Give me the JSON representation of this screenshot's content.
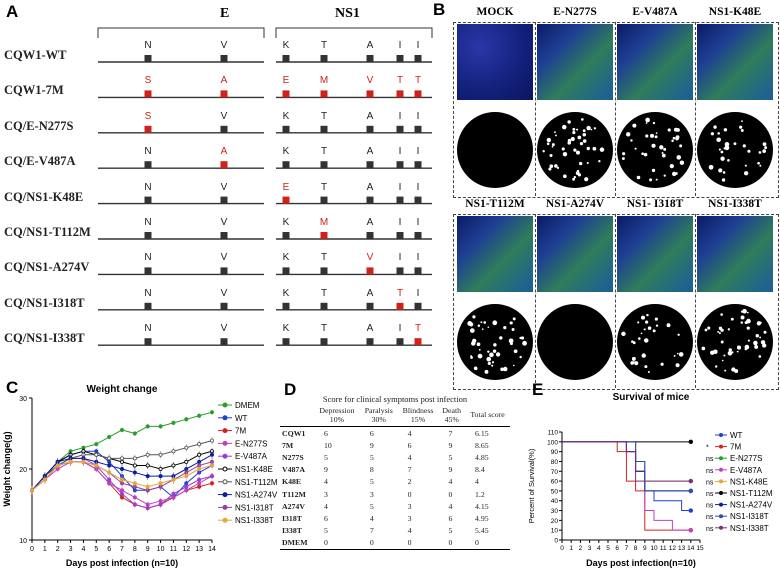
{
  "panelA": {
    "letter": "A",
    "gene_E": "E",
    "gene_NS1": "NS1",
    "rows": [
      {
        "label": "CQW1-WT",
        "E": [
          {
            "aa": "N",
            "red": false
          },
          {
            "aa": "V",
            "red": false
          }
        ],
        "NS1": [
          {
            "aa": "K",
            "red": false
          },
          {
            "aa": "T",
            "red": false
          },
          {
            "aa": "A",
            "red": false
          },
          {
            "aa": "I",
            "red": false
          },
          {
            "aa": "I",
            "red": false
          }
        ]
      },
      {
        "label": "CQW1-7M",
        "E": [
          {
            "aa": "S",
            "red": true
          },
          {
            "aa": "A",
            "red": true
          }
        ],
        "NS1": [
          {
            "aa": "E",
            "red": true
          },
          {
            "aa": "M",
            "red": true
          },
          {
            "aa": "V",
            "red": true
          },
          {
            "aa": "T",
            "red": true
          },
          {
            "aa": "T",
            "red": true
          }
        ]
      },
      {
        "label": "CQ/E-N277S",
        "E": [
          {
            "aa": "S",
            "red": true
          },
          {
            "aa": "V",
            "red": false
          }
        ],
        "NS1": [
          {
            "aa": "K",
            "red": false
          },
          {
            "aa": "T",
            "red": false
          },
          {
            "aa": "A",
            "red": false
          },
          {
            "aa": "I",
            "red": false
          },
          {
            "aa": "I",
            "red": false
          }
        ]
      },
      {
        "label": "CQ/E-V487A",
        "E": [
          {
            "aa": "N",
            "red": false
          },
          {
            "aa": "A",
            "red": true
          }
        ],
        "NS1": [
          {
            "aa": "K",
            "red": false
          },
          {
            "aa": "T",
            "red": false
          },
          {
            "aa": "A",
            "red": false
          },
          {
            "aa": "I",
            "red": false
          },
          {
            "aa": "I",
            "red": false
          }
        ]
      },
      {
        "label": "CQ/NS1-K48E",
        "E": [
          {
            "aa": "N",
            "red": false
          },
          {
            "aa": "V",
            "red": false
          }
        ],
        "NS1": [
          {
            "aa": "E",
            "red": true
          },
          {
            "aa": "T",
            "red": false
          },
          {
            "aa": "A",
            "red": false
          },
          {
            "aa": "I",
            "red": false
          },
          {
            "aa": "I",
            "red": false
          }
        ]
      },
      {
        "label": "CQ/NS1-T112M",
        "E": [
          {
            "aa": "N",
            "red": false
          },
          {
            "aa": "V",
            "red": false
          }
        ],
        "NS1": [
          {
            "aa": "K",
            "red": false
          },
          {
            "aa": "M",
            "red": true
          },
          {
            "aa": "A",
            "red": false
          },
          {
            "aa": "I",
            "red": false
          },
          {
            "aa": "I",
            "red": false
          }
        ]
      },
      {
        "label": "CQ/NS1-A274V",
        "E": [
          {
            "aa": "N",
            "red": false
          },
          {
            "aa": "V",
            "red": false
          }
        ],
        "NS1": [
          {
            "aa": "K",
            "red": false
          },
          {
            "aa": "T",
            "red": false
          },
          {
            "aa": "V",
            "red": true
          },
          {
            "aa": "I",
            "red": false
          },
          {
            "aa": "I",
            "red": false
          }
        ]
      },
      {
        "label": "CQ/NS1-I318T",
        "E": [
          {
            "aa": "N",
            "red": false
          },
          {
            "aa": "V",
            "red": false
          }
        ],
        "NS1": [
          {
            "aa": "K",
            "red": false
          },
          {
            "aa": "T",
            "red": false
          },
          {
            "aa": "A",
            "red": false
          },
          {
            "aa": "T",
            "red": true
          },
          {
            "aa": "I",
            "red": false
          }
        ]
      },
      {
        "label": "CQ/NS1-I338T",
        "E": [
          {
            "aa": "N",
            "red": false
          },
          {
            "aa": "V",
            "red": false
          }
        ],
        "NS1": [
          {
            "aa": "K",
            "red": false
          },
          {
            "aa": "T",
            "red": false
          },
          {
            "aa": "A",
            "red": false
          },
          {
            "aa": "I",
            "red": false
          },
          {
            "aa": "T",
            "red": true
          }
        ]
      }
    ]
  },
  "panelB": {
    "letter": "B",
    "top_labels": [
      "MOCK",
      "E-N277S",
      "E-V487A",
      "NS1-K48E"
    ],
    "bottom_labels": [
      "NS1-T112M",
      "NS1-A274V",
      "NS1- I318T",
      "NS1-I338T"
    ]
  },
  "panelC": {
    "letter": "C",
    "title": "Weight change",
    "xlabel": "Days post infection (n=10)",
    "ylabel": "Weight change(g)",
    "x_ticks": [
      "0",
      "1",
      "2",
      "3",
      "4",
      "5",
      "6",
      "7",
      "8",
      "9",
      "10",
      "11",
      "12",
      "13",
      "14"
    ],
    "y_ticks": [
      "10",
      "20",
      "30"
    ],
    "legend": [
      "DMEM",
      "WT",
      "7M",
      "E-N277S",
      "E-V487A",
      "NS1-K48E",
      "NS1-T112M",
      "NS1-A274V",
      "NS1-I318T",
      "NS1-I338T"
    ]
  },
  "panelD": {
    "letter": "D",
    "caption": "Score for clinical symptoms post infection",
    "headers": [
      [
        "Depression",
        "10%"
      ],
      [
        "Paralysis",
        "30%"
      ],
      [
        "Blindness",
        "15%"
      ],
      [
        "Death",
        "45%"
      ],
      [
        "Total score",
        ""
      ]
    ],
    "rows": [
      [
        "CQW1",
        "6",
        "6",
        "4",
        "7",
        "6.15"
      ],
      [
        "7M",
        "10",
        "9",
        "6",
        "9",
        "8.65"
      ],
      [
        "N277S",
        "5",
        "5",
        "4",
        "5",
        "4.85"
      ],
      [
        "V487A",
        "9",
        "8",
        "7",
        "9",
        "8.4"
      ],
      [
        "K48E",
        "4",
        "5",
        "2",
        "4",
        "4"
      ],
      [
        "T112M",
        "3",
        "3",
        "0",
        "0",
        "1.2"
      ],
      [
        "A274V",
        "4",
        "5",
        "3",
        "4",
        "4.15"
      ],
      [
        "I318T",
        "6",
        "4",
        "3",
        "6",
        "4.95"
      ],
      [
        "I338T",
        "5",
        "7",
        "4",
        "5",
        "5.45"
      ],
      [
        "DMEM",
        "0",
        "0",
        "0",
        "0",
        "0"
      ]
    ]
  },
  "panelE": {
    "letter": "E",
    "title": "Survival of mice",
    "xlabel": "Days post infection(n=10)",
    "ylabel": "Percent of Survival(%)",
    "x_ticks": [
      "0",
      "1",
      "2",
      "3",
      "4",
      "5",
      "6",
      "7",
      "8",
      "9",
      "10",
      "11",
      "12",
      "13",
      "14",
      "15"
    ],
    "y_ticks": [
      "0",
      "10",
      "20",
      "30",
      "40",
      "50",
      "60",
      "70",
      "80",
      "90",
      "100",
      "110"
    ],
    "legend": [
      "WT",
      "7M",
      "E-N277S",
      "E-V487A",
      "NS1-K48E",
      "NS1-T112M",
      "NS1-A274V",
      "NS1-I318T",
      "NS1-I338T"
    ],
    "ns_label": "ns",
    "star_label": "*"
  },
  "chart_data": [
    {
      "type": "line",
      "title": "Weight change",
      "xlabel": "Days post infection (n=10)",
      "ylabel": "Weight change(g)",
      "ylim": [
        10,
        30
      ],
      "x": [
        0,
        1,
        2,
        3,
        4,
        5,
        6,
        7,
        8,
        9,
        10,
        11,
        12,
        13,
        14
      ],
      "series": [
        {
          "name": "DMEM",
          "color": "#2a9d2a",
          "values": [
            17,
            19,
            21,
            22.5,
            23,
            23.5,
            24.5,
            25.5,
            25,
            26,
            26,
            26.5,
            27,
            27.5,
            28
          ]
        },
        {
          "name": "WT",
          "color": "#1f3fd6",
          "values": [
            17,
            19,
            21,
            22,
            22.5,
            22.5,
            21,
            19,
            17,
            17,
            17.5,
            16,
            18,
            19.5,
            20.5
          ]
        },
        {
          "name": "7M",
          "color": "#d62020",
          "values": [
            17,
            18.5,
            20.5,
            21,
            21,
            20,
            18,
            16,
            15,
            14.5,
            15,
            16,
            17,
            17.5,
            18
          ]
        },
        {
          "name": "E-N277S",
          "color": "#c040c0",
          "values": [
            17,
            18.5,
            20,
            21,
            21,
            20,
            18,
            17,
            16,
            15,
            15.5,
            16,
            17,
            18,
            19
          ]
        },
        {
          "name": "E-V487A",
          "color": "#9a3fd0",
          "values": [
            17,
            18.5,
            20.5,
            21.5,
            21.5,
            20.5,
            18.5,
            16.5,
            15,
            14.5,
            15,
            16.5,
            17.5,
            18.5,
            19
          ]
        },
        {
          "name": "NS1-K48E",
          "color": "#000000",
          "values": [
            17,
            19,
            21,
            22,
            22.5,
            22,
            21.5,
            21,
            20.5,
            20.5,
            20,
            20.5,
            21,
            22,
            22.5
          ]
        },
        {
          "name": "NS1-T112M",
          "color": "#555555",
          "values": [
            17,
            19,
            20.5,
            21.5,
            22,
            22,
            21.5,
            21.5,
            21.5,
            22,
            22,
            22.5,
            23,
            23.5,
            24
          ]
        },
        {
          "name": "NS1-A274V",
          "color": "#0b1f9e",
          "values": [
            17,
            19,
            21,
            21.5,
            21.5,
            21,
            20.5,
            20,
            19.5,
            19,
            19,
            19,
            20,
            21,
            22
          ]
        },
        {
          "name": "NS1-I318T",
          "color": "#9a3f9a",
          "values": [
            17,
            18.5,
            20.5,
            21,
            21,
            20.5,
            19.5,
            18,
            17.5,
            17,
            17.5,
            18.5,
            19.5,
            20.5,
            21
          ]
        },
        {
          "name": "NS1-I338T",
          "color": "#e7a53b",
          "values": [
            17,
            18.5,
            20.5,
            21,
            21,
            20.5,
            19.5,
            18.5,
            18,
            17.5,
            18,
            18.5,
            19,
            20,
            20.5
          ]
        }
      ]
    },
    {
      "type": "line",
      "title": "Survival of mice",
      "xlabel": "Days post infection(n=10)",
      "ylabel": "Percent of Survival(%)",
      "ylim": [
        0,
        110
      ],
      "series": [
        {
          "name": "WT",
          "color": "#1f3fd6",
          "points": [
            [
              0,
              100
            ],
            [
              7,
              100
            ],
            [
              7,
              90
            ],
            [
              8,
              90
            ],
            [
              8,
              80
            ],
            [
              9,
              80
            ],
            [
              9,
              50
            ],
            [
              10,
              50
            ],
            [
              10,
              40
            ],
            [
              13,
              40
            ],
            [
              13,
              30
            ],
            [
              14,
              30
            ]
          ]
        },
        {
          "name": "7M",
          "color": "#d62020",
          "points": [
            [
              0,
              100
            ],
            [
              6,
              100
            ],
            [
              6,
              90
            ],
            [
              7,
              90
            ],
            [
              7,
              60
            ],
            [
              8,
              60
            ],
            [
              8,
              50
            ],
            [
              9,
              50
            ],
            [
              9,
              10
            ],
            [
              14,
              10
            ]
          ]
        },
        {
          "name": "E-N277S",
          "color": "#2a9d2a",
          "points": [
            [
              0,
              100
            ],
            [
              8,
              100
            ],
            [
              8,
              70
            ],
            [
              9,
              70
            ],
            [
              9,
              50
            ],
            [
              14,
              50
            ]
          ]
        },
        {
          "name": "E-V487A",
          "color": "#c040c0",
          "points": [
            [
              0,
              100
            ],
            [
              8,
              100
            ],
            [
              8,
              70
            ],
            [
              9,
              70
            ],
            [
              9,
              30
            ],
            [
              10,
              30
            ],
            [
              10,
              20
            ],
            [
              12,
              20
            ],
            [
              12,
              10
            ],
            [
              14,
              10
            ]
          ]
        },
        {
          "name": "NS1-K48E",
          "color": "#e7a53b",
          "points": [
            [
              0,
              100
            ],
            [
              8,
              100
            ],
            [
              8,
              80
            ],
            [
              9,
              80
            ],
            [
              9,
              60
            ],
            [
              14,
              60
            ]
          ]
        },
        {
          "name": "NS1-T112M",
          "color": "#000000",
          "points": [
            [
              0,
              100
            ],
            [
              14,
              100
            ]
          ]
        },
        {
          "name": "NS1-A274V",
          "color": "#0b1f9e",
          "points": [
            [
              0,
              100
            ],
            [
              7,
              100
            ],
            [
              7,
              90
            ],
            [
              8,
              90
            ],
            [
              8,
              70
            ],
            [
              9,
              70
            ],
            [
              9,
              50
            ],
            [
              14,
              50
            ]
          ]
        },
        {
          "name": "NS1-I318T",
          "color": "#2f4fb0",
          "points": [
            [
              0,
              100
            ],
            [
              8,
              100
            ],
            [
              8,
              80
            ],
            [
              9,
              80
            ],
            [
              9,
              50
            ],
            [
              14,
              50
            ]
          ]
        },
        {
          "name": "NS1-I338T",
          "color": "#7a2f7a",
          "points": [
            [
              0,
              100
            ],
            [
              7,
              100
            ],
            [
              7,
              90
            ],
            [
              8,
              90
            ],
            [
              8,
              60
            ],
            [
              14,
              60
            ]
          ]
        }
      ]
    }
  ]
}
